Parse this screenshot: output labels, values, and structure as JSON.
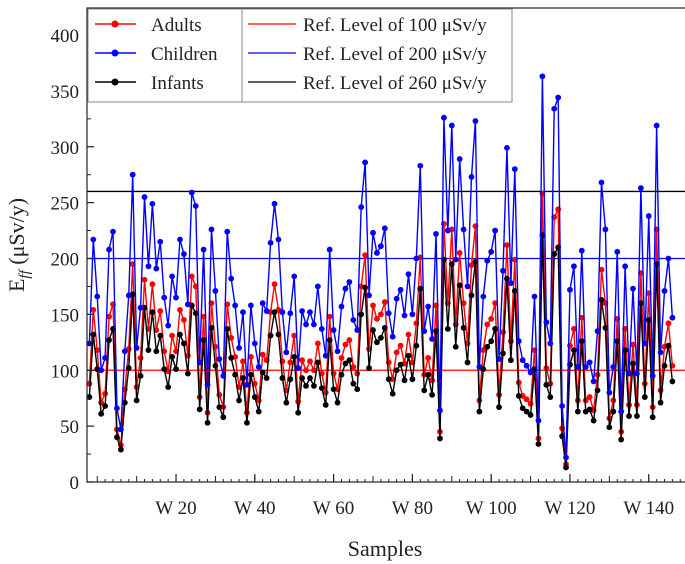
{
  "chart_data": {
    "type": "line",
    "title": "",
    "xlabel": "Samples",
    "ylabel_main": "E",
    "ylabel_sub": "ff",
    "ylabel_unit": " (μSv/y)",
    "ylim": [
      0,
      400
    ],
    "yticks": [
      0,
      50,
      100,
      150,
      200,
      250,
      300,
      350,
      400
    ],
    "xlim": [
      -2.6,
      149.2
    ],
    "x_start": -2,
    "xticks": [
      {
        "value": 20,
        "label": "W 20"
      },
      {
        "value": 40,
        "label": "W 40"
      },
      {
        "value": 60,
        "label": "W 60"
      },
      {
        "value": 80,
        "label": "W 80"
      },
      {
        "value": 100,
        "label": "W 100"
      },
      {
        "value": 120,
        "label": "W 120"
      },
      {
        "value": 140,
        "label": "W 140"
      }
    ],
    "grid": false,
    "legend_placement": "top-left",
    "series": [
      {
        "name": "Adults",
        "color": "#ff0000",
        "values": [
          88,
          154,
          118,
          71,
          79,
          148,
          159,
          47,
          33,
          83,
          119,
          195,
          85,
          111,
          181,
          137,
          177,
          136,
          153,
          117,
          99,
          131,
          117,
          154,
          145,
          113,
          184,
          175,
          76,
          148,
          62,
          160,
          121,
          78,
          67,
          159,
          129,
          112,
          85,
          108,
          62,
          112,
          88,
          73,
          114,
          109,
          152,
          177,
          154,
          108,
          82,
          107,
          131,
          72,
          109,
          100,
          108,
          100,
          124,
          97,
          80,
          148,
          97,
          83,
          111,
          123,
          127,
          103,
          97,
          175,
          203,
          119,
          158,
          146,
          150,
          161,
          107,
          92,
          116,
          122,
          106,
          132,
          107,
          142,
          201,
          96,
          111,
          91,
          158,
          45,
          231,
          160,
          226,
          141,
          205,
          160,
          124,
          194,
          229,
          73,
          118,
          141,
          146,
          160,
          78,
          134,
          212,
          126,
          199,
          89,
          77,
          74,
          70,
          118,
          39,
          258,
          102,
          88,
          237,
          244,
          48,
          16,
          122,
          137,
          73,
          147,
          73,
          76,
          64,
          96,
          190,
          160,
          57,
          73,
          146,
          45,
          137,
          69,
          123,
          69,
          187,
          88,
          169,
          67,
          226,
          82,
          121,
          142,
          104
        ]
      },
      {
        "name": "Children",
        "color": "#0000ff",
        "values": [
          124,
          217,
          166,
          100,
          111,
          208,
          224,
          66,
          47,
          117,
          167,
          275,
          120,
          156,
          255,
          193,
          249,
          191,
          215,
          165,
          140,
          184,
          165,
          217,
          204,
          159,
          259,
          247,
          107,
          208,
          87,
          226,
          171,
          110,
          95,
          224,
          182,
          158,
          120,
          152,
          87,
          158,
          124,
          103,
          160,
          153,
          214,
          249,
          217,
          152,
          116,
          151,
          184,
          102,
          153,
          141,
          152,
          141,
          175,
          137,
          113,
          208,
          136,
          117,
          157,
          173,
          179,
          145,
          136,
          246,
          286,
          167,
          223,
          205,
          211,
          227,
          151,
          130,
          164,
          172,
          149,
          186,
          150,
          200,
          283,
          135,
          157,
          128,
          222,
          64,
          326,
          225,
          319,
          199,
          289,
          226,
          175,
          273,
          323,
          103,
          166,
          198,
          206,
          225,
          110,
          189,
          299,
          178,
          280,
          126,
          109,
          104,
          98,
          166,
          55,
          363,
          143,
          124,
          334,
          344,
          68,
          22,
          172,
          193,
          103,
          207,
          103,
          107,
          90,
          135,
          268,
          226,
          80,
          103,
          206,
          63,
          193,
          97,
          173,
          97,
          263,
          124,
          238,
          95,
          319,
          116,
          171,
          200,
          147
        ]
      },
      {
        "name": "Infants",
        "color": "#000000",
        "values": [
          76,
          132,
          101,
          61,
          68,
          127,
          137,
          40,
          29,
          71,
          102,
          168,
          73,
          95,
          156,
          118,
          152,
          117,
          131,
          101,
          85,
          112,
          101,
          132,
          124,
          97,
          158,
          151,
          65,
          127,
          53,
          138,
          104,
          67,
          58,
          137,
          111,
          96,
          73,
          93,
          53,
          96,
          76,
          63,
          98,
          93,
          131,
          152,
          132,
          93,
          71,
          92,
          112,
          62,
          93,
          86,
          93,
          86,
          107,
          84,
          69,
          127,
          83,
          71,
          96,
          106,
          109,
          88,
          83,
          150,
          174,
          102,
          136,
          125,
          129,
          138,
          92,
          79,
          100,
          105,
          91,
          113,
          92,
          122,
          173,
          82,
          96,
          78,
          135,
          39,
          199,
          137,
          195,
          121,
          176,
          138,
          107,
          167,
          197,
          63,
          101,
          121,
          126,
          137,
          67,
          115,
          182,
          109,
          171,
          77,
          66,
          63,
          60,
          101,
          34,
          221,
          87,
          76,
          204,
          210,
          41,
          13,
          105,
          118,
          63,
          126,
          63,
          65,
          55,
          82,
          163,
          138,
          49,
          63,
          126,
          38,
          118,
          59,
          106,
          59,
          160,
          76,
          145,
          58,
          195,
          71,
          104,
          122,
          90
        ]
      }
    ],
    "reference_lines": [
      {
        "name": "Ref. Level of 100 μSv/y",
        "value": 100,
        "color": "#ff0000"
      },
      {
        "name": "Ref. Level of 200 μSv/y",
        "value": 200,
        "color": "#0000ff"
      },
      {
        "name": "Ref. Level of 260 μSv/y",
        "value": 260,
        "color": "#000000"
      }
    ]
  }
}
